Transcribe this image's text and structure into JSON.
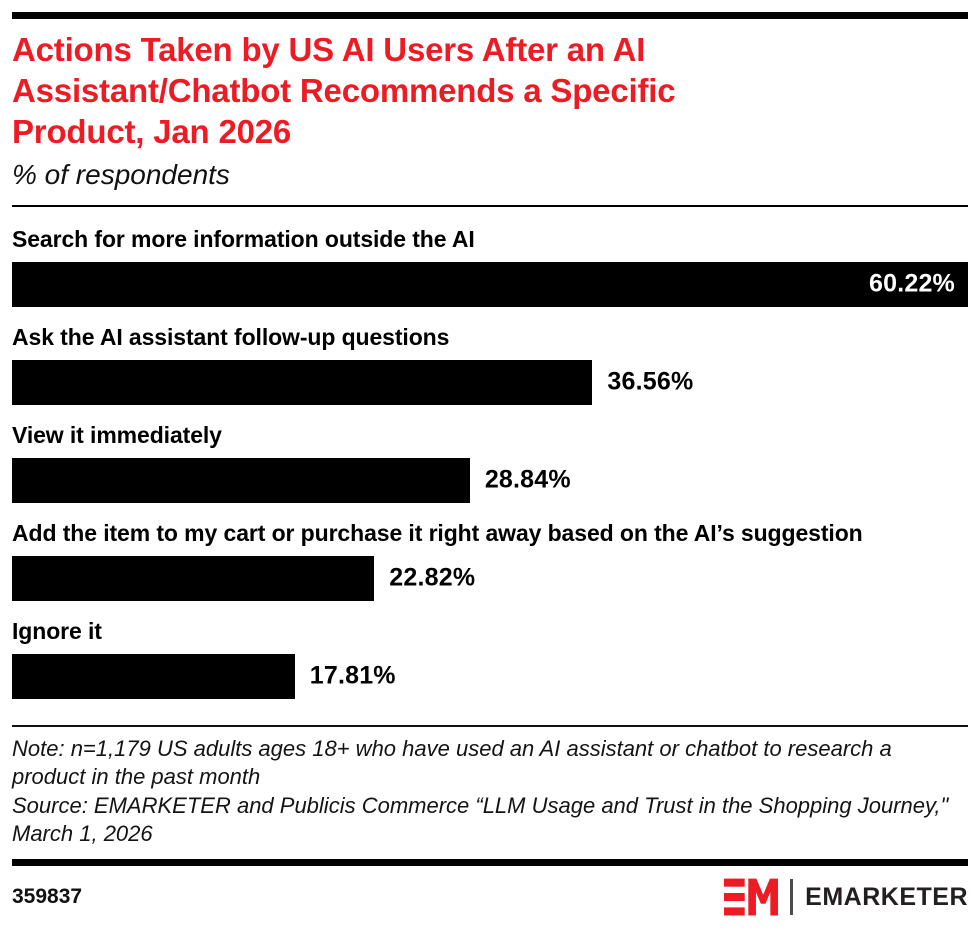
{
  "header": {
    "title": "Actions Taken by US AI Users After an AI Assistant/Chatbot Recommends a Specific Product, Jan 2026",
    "subtitle": "% of respondents"
  },
  "chart_data": {
    "type": "bar",
    "orientation": "horizontal",
    "title": "Actions Taken by US AI Users After an AI Assistant/Chatbot Recommends a Specific Product, Jan 2026",
    "subtitle": "% of respondents",
    "unit": "% of respondents",
    "categories": [
      "Search for more information outside the AI",
      "Ask the AI assistant follow-up questions",
      "View it immediately",
      "Add the item to my cart or purchase it right away based on the AI’s suggestion",
      "Ignore it"
    ],
    "values": [
      60.22,
      36.56,
      28.84,
      22.82,
      17.81
    ],
    "value_labels": [
      "60.22%",
      "36.56%",
      "28.84%",
      "22.82%",
      "17.81%"
    ],
    "xlim": [
      0,
      60.22
    ],
    "bar_color": "#000000",
    "max_value_label_inside_bar": true,
    "grid": false,
    "legend": false
  },
  "footnote": {
    "note": "Note: n=1,179 US adults ages 18+ who have used an AI assistant or chatbot to research a product in the past month",
    "source": "Source: EMARKETER and Publicis Commerce “LLM Usage and Trust in the Shopping Journey,\" March 1, 2026"
  },
  "footer": {
    "chart_number": "359837",
    "brand": "EMARKETER",
    "brand_red": "#ed1c24",
    "brand_text_color": "#231f20"
  }
}
